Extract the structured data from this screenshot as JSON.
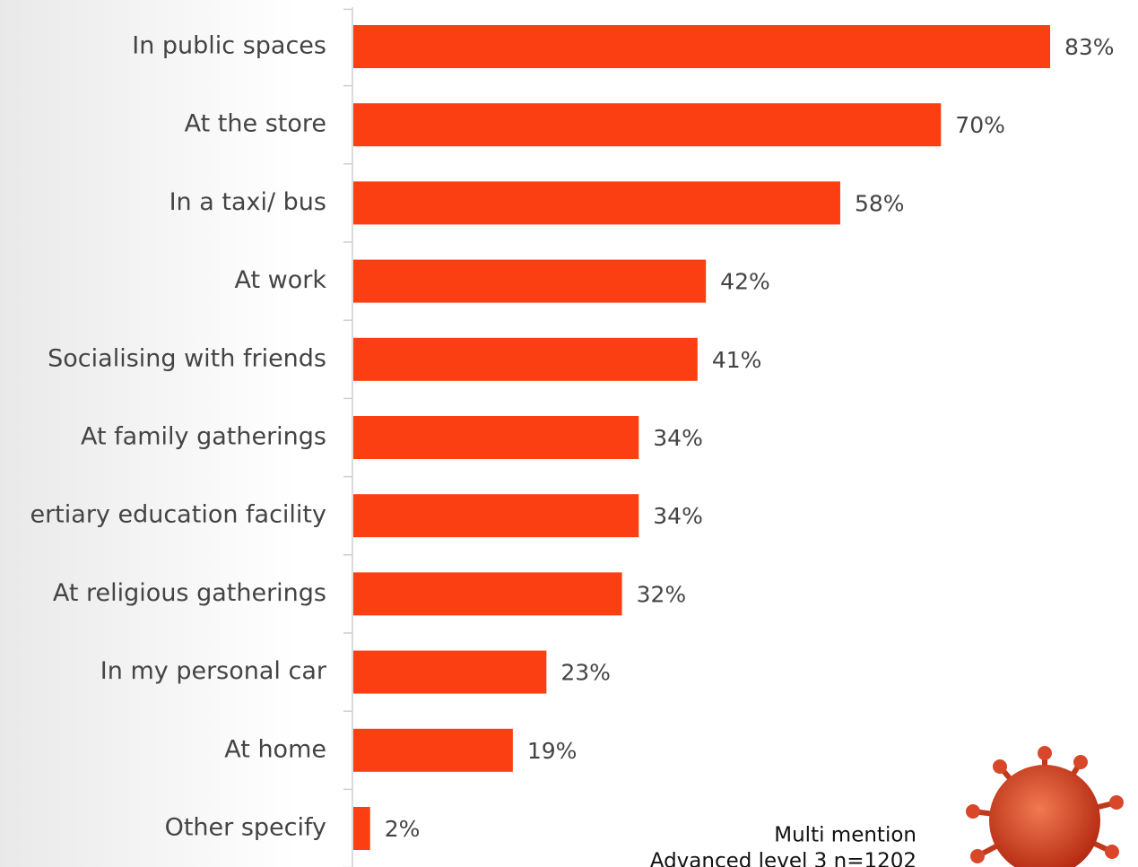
{
  "chart_data": {
    "type": "bar",
    "orientation": "horizontal",
    "categories": [
      "In public spaces",
      "At the store",
      "In a taxi/ bus",
      "At work",
      "Socialising with friends",
      "At family gatherings",
      "ertiary education facility",
      "At religious gatherings",
      "In my personal car",
      "At home",
      "Other specify"
    ],
    "values": [
      83,
      70,
      58,
      42,
      41,
      34,
      34,
      32,
      23,
      19,
      2
    ],
    "value_labels": [
      "83%",
      "70%",
      "58%",
      "42%",
      "41%",
      "34%",
      "34%",
      "32%",
      "23%",
      "19%",
      "2%"
    ],
    "color": "#fc3f12",
    "notes": [
      "Multi mention",
      "Advanced level 3 n=1202"
    ]
  }
}
